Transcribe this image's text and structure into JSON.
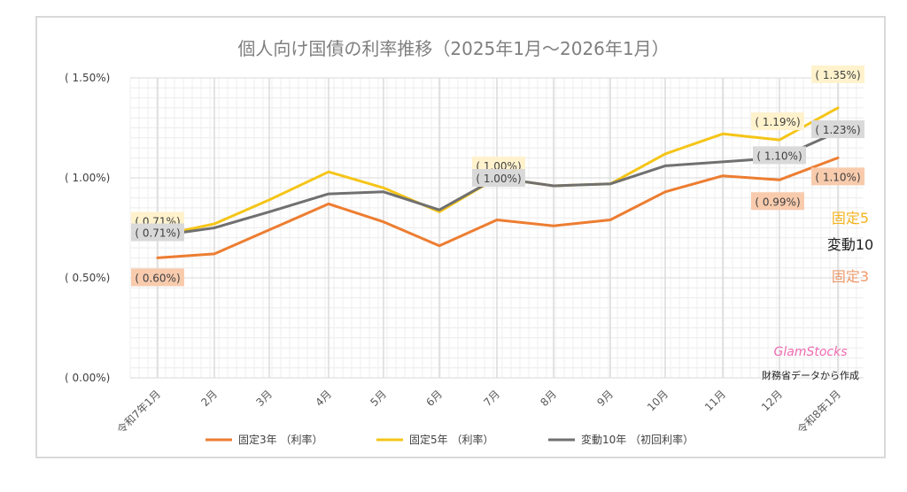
{
  "chart_data": {
    "type": "line",
    "title": "個人向け国債の利率推移（2025年1月～2026年1月）",
    "categories": [
      "令和7年1月",
      "2月",
      "3月",
      "4月",
      "5月",
      "6月",
      "7月",
      "8月",
      "9月",
      "10月",
      "11月",
      "12月",
      "令和8年1月"
    ],
    "yticks": [
      "( 0.00%)",
      "( 0.50%)",
      "( 1.00%)",
      "( 1.50%)"
    ],
    "ylim": [
      0,
      1.5
    ],
    "series": [
      {
        "name": "固定3年 （利率）",
        "color": "#ed7d31",
        "values": [
          0.6,
          0.62,
          0.74,
          0.87,
          0.78,
          0.66,
          0.79,
          0.76,
          0.79,
          0.93,
          1.01,
          0.99,
          1.1
        ]
      },
      {
        "name": "固定5年 （利率）",
        "color": "#f5c518",
        "values": [
          0.71,
          0.77,
          0.89,
          1.03,
          0.95,
          0.83,
          1.0,
          0.96,
          0.97,
          1.12,
          1.22,
          1.19,
          1.35
        ]
      },
      {
        "name": "変動10年 （初回利率）",
        "color": "#707070",
        "values": [
          0.71,
          0.75,
          0.83,
          0.92,
          0.93,
          0.84,
          1.0,
          0.96,
          0.97,
          1.06,
          1.08,
          1.1,
          1.23
        ]
      }
    ],
    "data_labels": [
      {
        "series": 1,
        "index": 0,
        "text": "( 0.71%)"
      },
      {
        "series": 2,
        "index": 0,
        "text": "( 0.71%)"
      },
      {
        "series": 0,
        "index": 0,
        "text": "( 0.60%)"
      },
      {
        "series": 1,
        "index": 6,
        "text": "( 1.00%)"
      },
      {
        "series": 2,
        "index": 6,
        "text": "( 1.00%)"
      },
      {
        "series": 1,
        "index": 11,
        "text": "( 1.19%)"
      },
      {
        "series": 2,
        "index": 11,
        "text": "( 1.10%)"
      },
      {
        "series": 0,
        "index": 11,
        "text": "( 0.99%)"
      },
      {
        "series": 1,
        "index": 12,
        "text": "( 1.35%)"
      },
      {
        "series": 2,
        "index": 12,
        "text": "( 1.23%)"
      },
      {
        "series": 0,
        "index": 12,
        "text": "( 1.10%)"
      }
    ],
    "side_labels": [
      {
        "text": "固定5",
        "color": "#f5b31b"
      },
      {
        "text": "変動10",
        "color": "#222222"
      },
      {
        "text": "固定3",
        "color": "#ed9a6a"
      }
    ],
    "brand": "GlamStocks",
    "credit": "財務省データから作成"
  }
}
